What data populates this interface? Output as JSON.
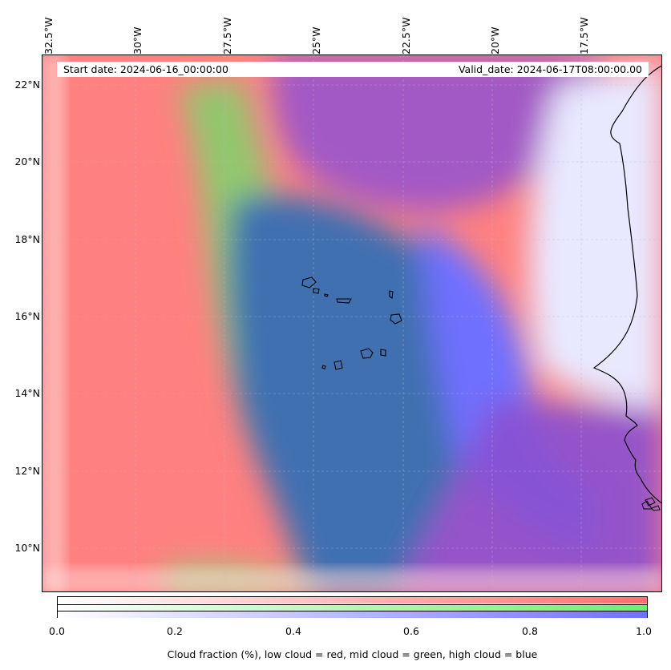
{
  "map": {
    "lon_labels": [
      "32.5°W",
      "30°W",
      "27.5°W",
      "25°W",
      "22.5°W",
      "20°W",
      "17.5°W"
    ],
    "lat_labels": [
      "22°N",
      "20°N",
      "18°N",
      "16°N",
      "14°N",
      "12°N",
      "10°N"
    ],
    "start_date": "Start date: 2024-06-16_00:00:00",
    "valid_date": "Valid_date: 2024-06-17T08:00:00.00",
    "colors": {
      "low_cloud": "#ff7070",
      "mid_cloud": "#6cf06c",
      "high_cloud": "#7070ff",
      "coast": "#000000"
    }
  },
  "colorbar": {
    "ticks": [
      "0.0",
      "0.2",
      "0.4",
      "0.6",
      "0.8",
      "1.0"
    ],
    "label": "Cloud fraction (%), low cloud = red, mid cloud = green, high cloud = blue"
  }
}
